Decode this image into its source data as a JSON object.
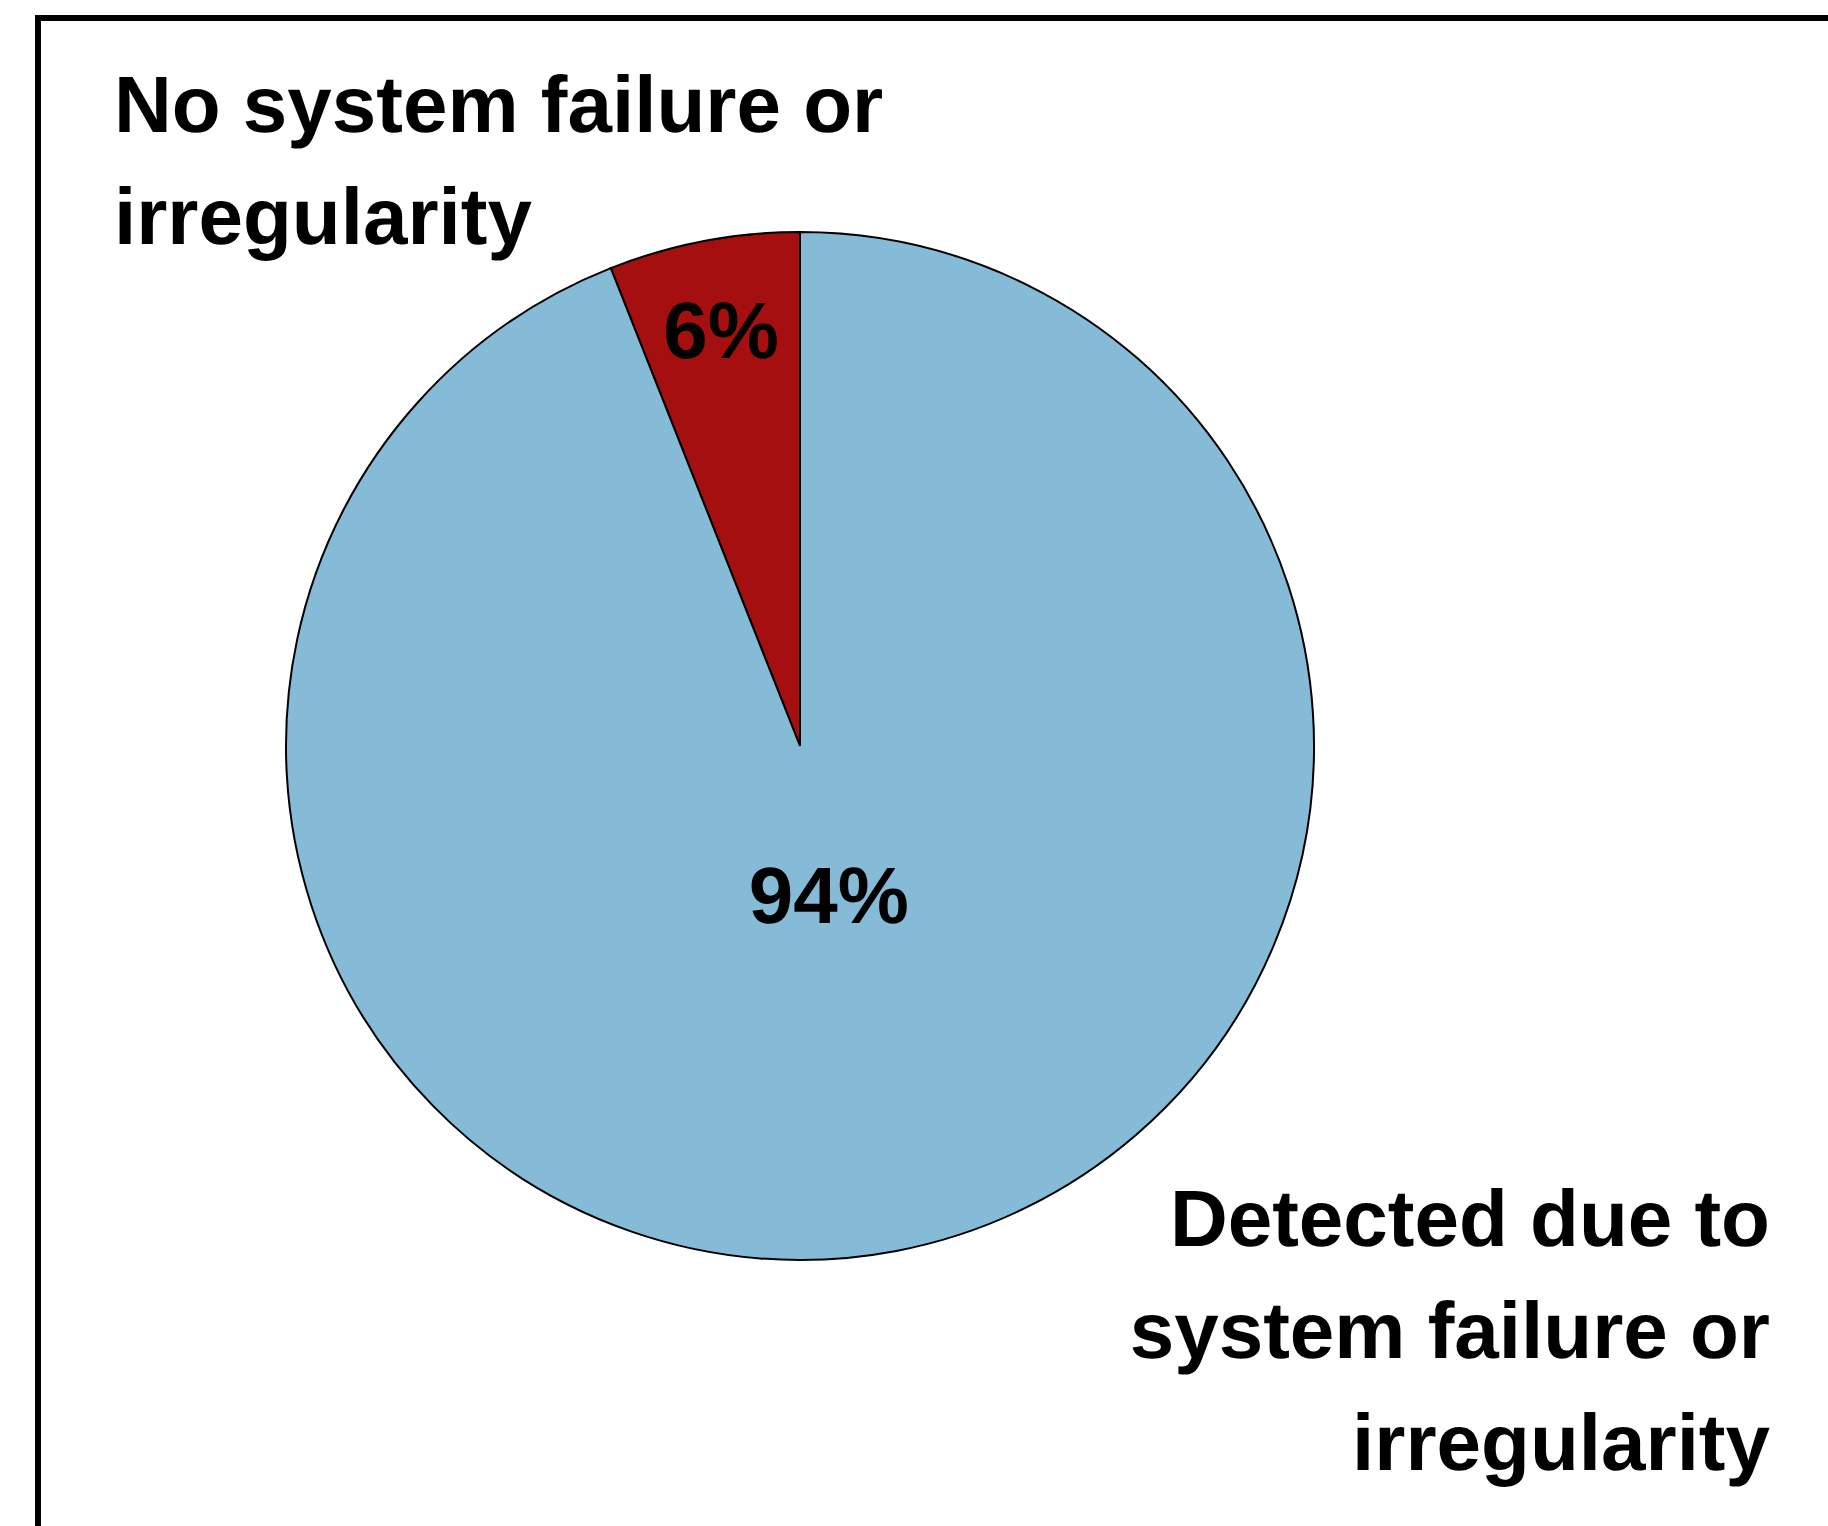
{
  "chart_data": {
    "type": "pie",
    "categories": [
      "No system failure or irregularity",
      "Detected due to system failure or irregularity"
    ],
    "values": [
      6,
      94
    ],
    "colors": [
      "#a50f0f",
      "#86bbd8"
    ],
    "value_labels": [
      "6%",
      "94%"
    ]
  }
}
